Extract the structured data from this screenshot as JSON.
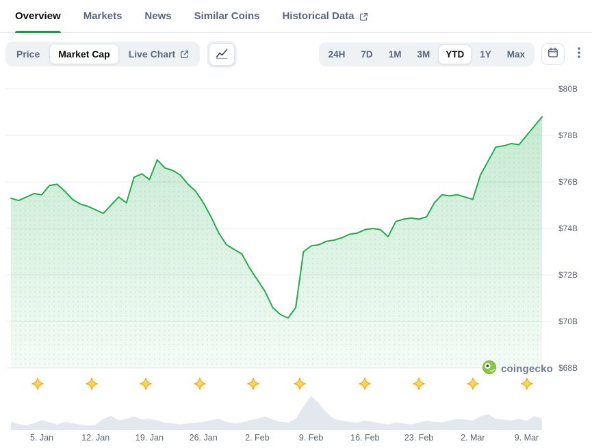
{
  "tabs": {
    "items": [
      {
        "label": "Overview",
        "active": true
      },
      {
        "label": "Markets",
        "active": false
      },
      {
        "label": "News",
        "active": false
      },
      {
        "label": "Similar Coins",
        "active": false
      },
      {
        "label": "Historical Data",
        "active": false,
        "external": true
      }
    ]
  },
  "toolbar": {
    "chart_type": {
      "options": [
        "Price",
        "Market Cap",
        "Live Chart"
      ],
      "selected": "Market Cap",
      "live_chart_external": true
    },
    "chart_style": {
      "icon": "line-chart-icon",
      "selected": true
    },
    "ranges": {
      "options": [
        "24H",
        "7D",
        "1M",
        "3M",
        "YTD",
        "1Y",
        "Max"
      ],
      "selected": "YTD"
    },
    "icons": [
      "calendar-icon",
      "kebab-menu-icon"
    ]
  },
  "watermark": {
    "label": "coingecko",
    "icon": "coingecko-gecko-icon"
  },
  "colors": {
    "accent_green": "#00a83e",
    "line_green": "#22ab4d",
    "marker_gold": "#ffd84d",
    "volume_gray": "#e2e8ee"
  },
  "chart_data": [
    {
      "type": "line",
      "name": "Market Cap (USD, billions) — YTD daily",
      "x_unit": "day index from Jan 1",
      "x_tick_labels": [
        "5. Jan",
        "12. Jan",
        "19. Jan",
        "26. Jan",
        "2. Feb",
        "9. Feb",
        "16. Feb",
        "23. Feb",
        "2. Mar",
        "9. Mar"
      ],
      "x_tick_days": [
        4,
        11,
        18,
        25,
        32,
        39,
        46,
        53,
        60,
        67
      ],
      "y_ticks": [
        "$80B",
        "$78B",
        "$76B",
        "$74B",
        "$72B",
        "$70B",
        "$68B"
      ],
      "y_tick_values": [
        80,
        78,
        76,
        74,
        72,
        70,
        68
      ],
      "ylim": [
        68,
        80
      ],
      "grid": true,
      "legend": "none",
      "line_color": "#22ab4d",
      "values": [
        75.3,
        75.2,
        75.35,
        75.5,
        75.45,
        75.85,
        75.9,
        75.6,
        75.25,
        75.05,
        74.95,
        74.8,
        74.65,
        75.0,
        75.35,
        75.1,
        76.2,
        76.35,
        76.1,
        76.95,
        76.6,
        76.5,
        76.3,
        75.9,
        75.6,
        75.1,
        74.5,
        73.8,
        73.3,
        73.1,
        72.9,
        72.3,
        71.8,
        71.3,
        70.6,
        70.3,
        70.15,
        70.6,
        73.0,
        73.25,
        73.3,
        73.45,
        73.5,
        73.6,
        73.75,
        73.8,
        73.95,
        74.0,
        73.95,
        73.65,
        74.3,
        74.4,
        74.45,
        74.4,
        74.5,
        75.1,
        75.45,
        75.4,
        75.45,
        75.35,
        75.25,
        76.3,
        76.9,
        77.5,
        77.55,
        77.65,
        77.6,
        78.0,
        78.4,
        78.8
      ],
      "annotation_marker_days": [
        3.5,
        10.5,
        17.5,
        24.5,
        31.5,
        37.5,
        46,
        53,
        60,
        67
      ],
      "annotation_marker_icon": "gold-sparkle-icon"
    },
    {
      "type": "area",
      "name": "volume-silhouette (relative 0-100)",
      "color": "#e2e8ee",
      "values": [
        22,
        16,
        13,
        18,
        26,
        21,
        15,
        22,
        18,
        15,
        12,
        14,
        30,
        38,
        26,
        30,
        36,
        28,
        30,
        26,
        20,
        18,
        15,
        18,
        20,
        22,
        26,
        30,
        22,
        18,
        20,
        26,
        30,
        36,
        28,
        22,
        20,
        30,
        62,
        90,
        70,
        46,
        30,
        25,
        22,
        20,
        25,
        22,
        18,
        15,
        20,
        18,
        15,
        20,
        25,
        22,
        20,
        25,
        30,
        28,
        25,
        36,
        42,
        30,
        28,
        25,
        30,
        25,
        36,
        30
      ]
    }
  ]
}
